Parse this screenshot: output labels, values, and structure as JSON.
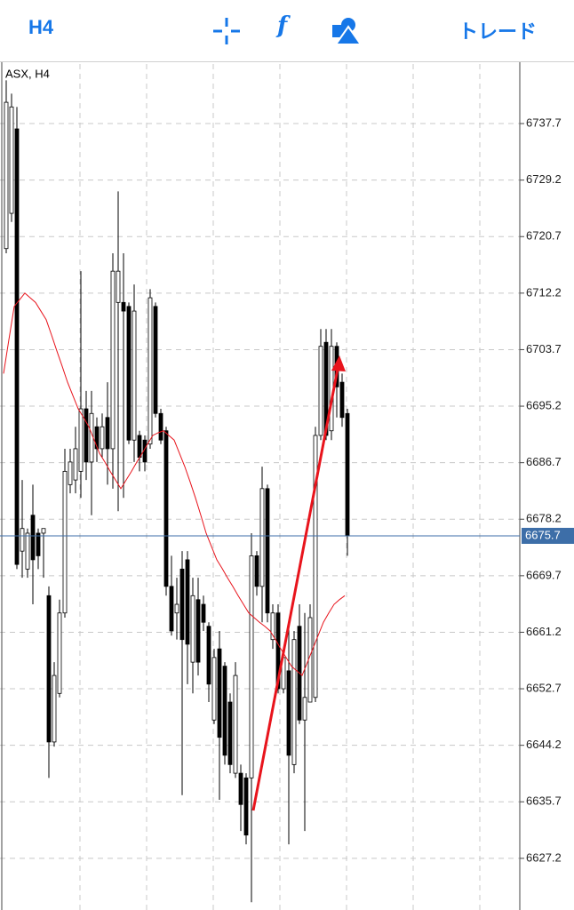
{
  "header": {
    "timeframe": "H4",
    "function_icon": "f",
    "trade": "トレード"
  },
  "chart_data": {
    "type": "candlestick",
    "label": "ASX, H4",
    "open": [
      6718.9,
      6724.2,
      6736.9,
      6673.4,
      6670.7,
      6678.8,
      6676.1,
      6676.1,
      6666.7,
      6644.7,
      6652.0,
      6664.1,
      6683.4,
      6684.1,
      6685.4,
      6694.8,
      6686.8,
      6692.1,
      6688.8,
      6693.5,
      6688.8,
      6710.8,
      6710.8,
      6710.2,
      6690.1,
      6690.8,
      6690.1,
      6689.5,
      6710.2,
      6694.1,
      6691.5,
      6668.1,
      6664.1,
      6670.7,
      6672.1,
      6656.7,
      6666.1,
      6665.4,
      6662.1,
      6648.0,
      6658.7,
      6656.1,
      6650.7,
      6640.0,
      6640.0,
      6639.3,
      6639.3,
      6672.7,
      6668.1,
      6682.8,
      6660.1,
      6664.1,
      6652.7,
      6655.4,
      6641.3,
      6662.1,
      6648.0,
      6650.7,
      6651.4,
      6690.8,
      6704.8,
      6691.5,
      6704.2,
      6698.8,
      6694.1
    ],
    "high": [
      6744.2,
      6742.2,
      6740.2,
      6684.1,
      6676.8,
      6683.4,
      6676.8,
      6676.8,
      6668.1,
      6656.7,
      6666.1,
      6688.8,
      6688.8,
      6692.1,
      6715.5,
      6697.5,
      6697.5,
      6693.5,
      6694.1,
      6698.8,
      6718.2,
      6727.5,
      6718.2,
      6710.8,
      6713.5,
      6691.5,
      6690.8,
      6712.8,
      6710.8,
      6694.8,
      6692.1,
      6672.7,
      6669.4,
      6673.4,
      6673.4,
      6669.4,
      6669.4,
      6666.7,
      6662.7,
      6658.7,
      6661.4,
      6656.7,
      6652.0,
      6656.7,
      6641.3,
      6640.0,
      6676.1,
      6673.4,
      6686.1,
      6683.4,
      6665.4,
      6665.4,
      6658.7,
      6662.7,
      6661.4,
      6665.4,
      6664.1,
      6665.4,
      6692.1,
      6706.8,
      6706.8,
      6706.8,
      6704.8,
      6700.1,
      6694.8
    ],
    "low": [
      6718.2,
      6722.9,
      6670.7,
      6669.4,
      6669.4,
      6665.4,
      6670.7,
      6669.4,
      6639.3,
      6644.0,
      6651.4,
      6663.4,
      6682.1,
      6682.1,
      6681.4,
      6684.1,
      6678.8,
      6686.8,
      6687.5,
      6683.4,
      6682.8,
      6679.4,
      6681.4,
      6689.5,
      6686.8,
      6685.4,
      6685.4,
      6688.8,
      6693.5,
      6689.5,
      6666.7,
      6660.7,
      6660.1,
      6636.7,
      6653.4,
      6652.0,
      6654.7,
      6661.4,
      6650.7,
      6647.4,
      6636.0,
      6641.3,
      6640.0,
      6639.3,
      6631.3,
      6629.3,
      6620.6,
      6666.7,
      6662.7,
      6662.7,
      6658.7,
      6652.0,
      6652.0,
      6629.3,
      6640.0,
      6647.4,
      6631.3,
      6650.7,
      6650.7,
      6690.1,
      6690.1,
      6690.1,
      6693.5,
      6692.1,
      6672.7
    ],
    "close": [
      6740.9,
      6740.2,
      6671.4,
      6676.8,
      6676.1,
      6672.1,
      6672.7,
      6676.8,
      6644.7,
      6654.7,
      6664.1,
      6685.4,
      6686.8,
      6688.8,
      6694.8,
      6686.8,
      6694.1,
      6688.8,
      6692.1,
      6688.8,
      6715.5,
      6715.5,
      6709.5,
      6690.1,
      6709.5,
      6687.5,
      6686.8,
      6711.5,
      6694.1,
      6690.1,
      6668.1,
      6661.4,
      6665.4,
      6660.1,
      6659.4,
      6666.7,
      6656.7,
      6662.7,
      6653.4,
      6657.4,
      6645.4,
      6642.7,
      6641.3,
      6654.7,
      6635.3,
      6630.7,
      6672.7,
      6668.1,
      6682.8,
      6664.1,
      6664.1,
      6652.7,
      6657.4,
      6642.7,
      6660.1,
      6648.0,
      6651.4,
      6663.4,
      6690.8,
      6704.2,
      6690.8,
      6704.2,
      6698.1,
      6693.5,
      6675.7
    ],
    "ma": {
      "color": "#e8141c",
      "values": [
        6700.1,
        6705.2,
        6710.2,
        6711.2,
        6712.2,
        6711.5,
        6710.8,
        6709.5,
        6708.2,
        6705.9,
        6703.5,
        6701.2,
        6698.8,
        6696.8,
        6694.8,
        6693.5,
        6692.1,
        6690.1,
        6688.1,
        6686.8,
        6685.4,
        6684.1,
        6682.8,
        6684.1,
        6685.4,
        6686.8,
        6688.1,
        6689.5,
        6690.8,
        6691.2,
        6691.5,
        6690.8,
        6690.1,
        6688.1,
        6686.1,
        6683.8,
        6681.4,
        6678.8,
        6676.1,
        6674.1,
        6672.1,
        6670.8,
        6669.4,
        6668.1,
        6666.7,
        6665.4,
        6664.1,
        6663.4,
        6662.7,
        6662.1,
        6661.4,
        6660.1,
        6658.7,
        6657.4,
        6656.1,
        6655.4,
        6654.7,
        6656.7,
        6658.7,
        6660.7,
        6662.7,
        6664.1,
        6665.4,
        6666.1,
        6666.7
      ]
    },
    "last_price": 6675.7,
    "last_price_color": "#3d6ea8",
    "ylim": [
      6619.43,
      6746.66
    ],
    "yticks": [
      6737.7,
      6729.2,
      6720.7,
      6712.2,
      6703.7,
      6695.2,
      6686.7,
      6678.2,
      6669.7,
      6661.2,
      6652.7,
      6644.2,
      6635.7,
      6627.2
    ],
    "grid": true
  }
}
